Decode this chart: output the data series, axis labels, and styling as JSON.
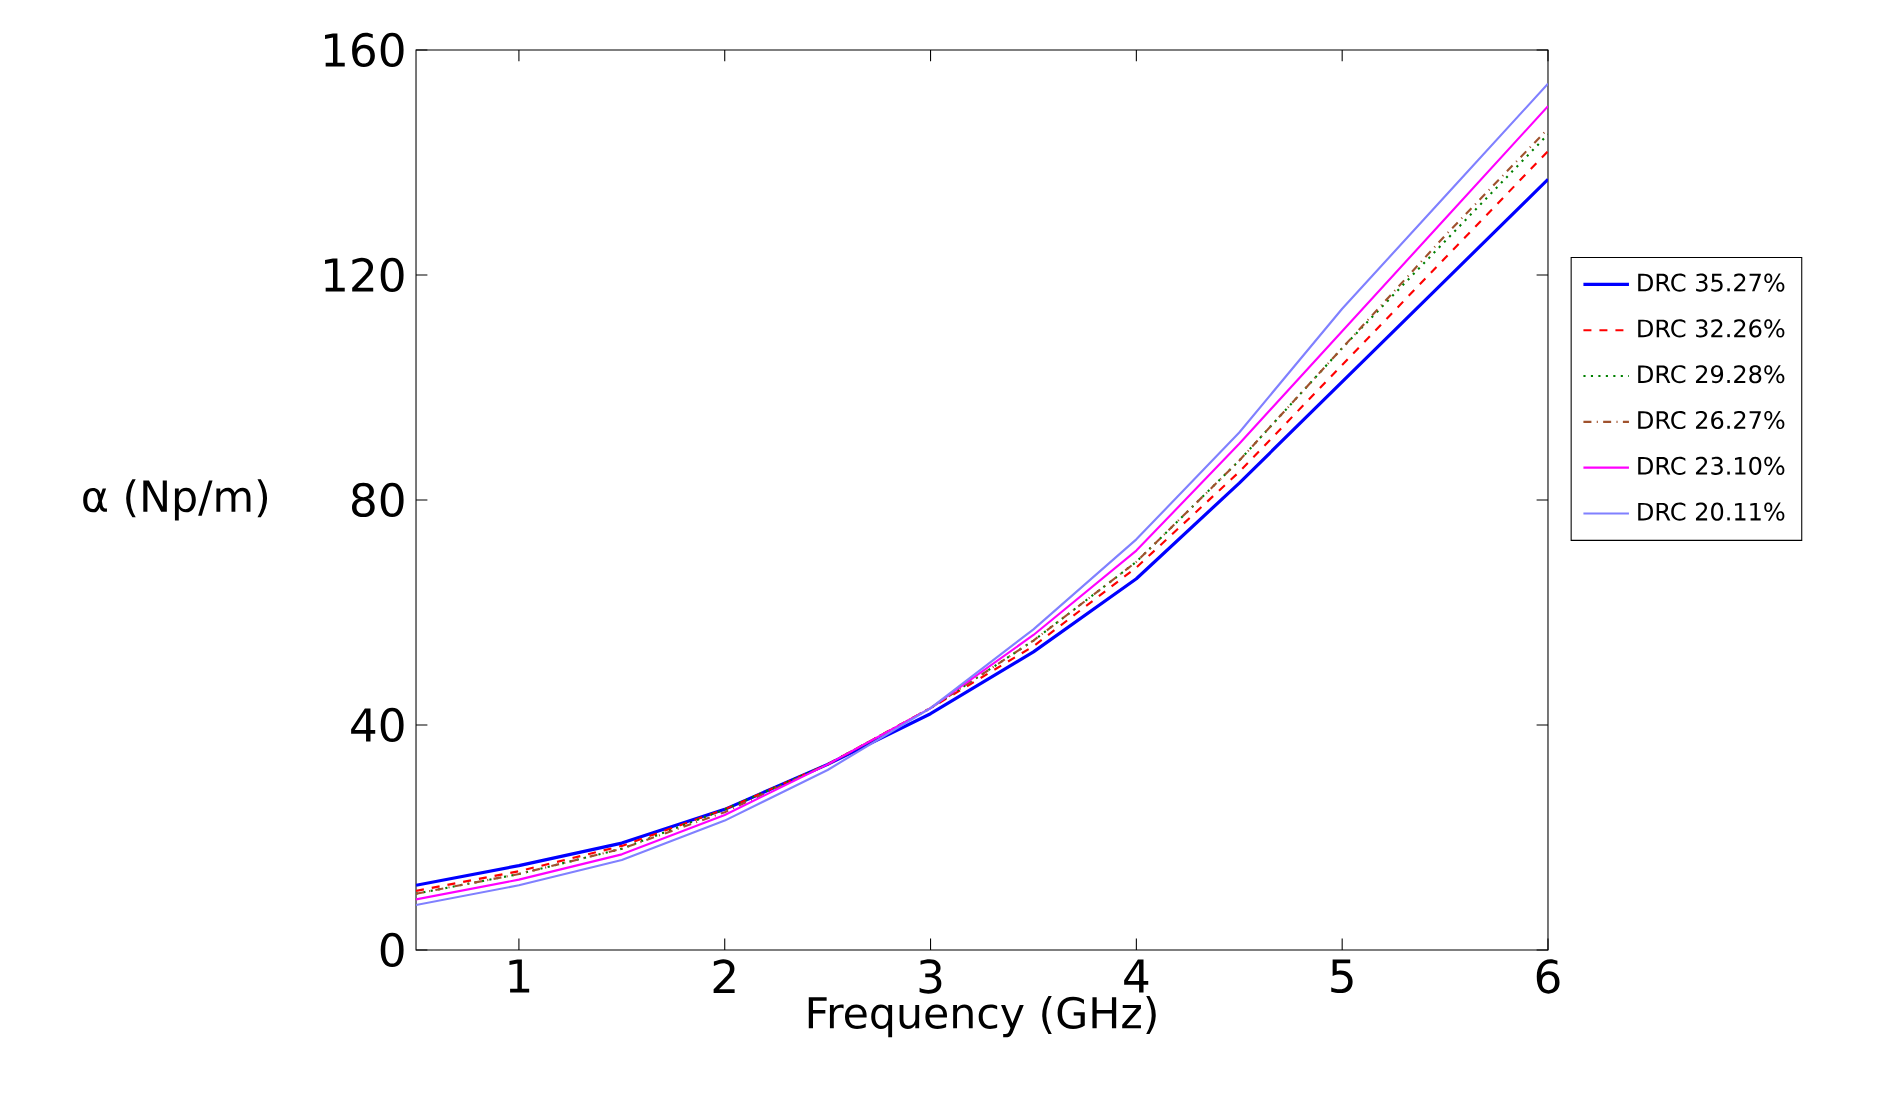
{
  "chart_data": {
    "type": "line",
    "xlabel": "Frequency (GHz)",
    "ylabel": "α (Np/m)",
    "xlim": [
      0.5,
      6
    ],
    "ylim": [
      0,
      160
    ],
    "xticks": [
      1,
      2,
      3,
      4,
      5,
      6
    ],
    "yticks": [
      0,
      40,
      80,
      120,
      160
    ],
    "legend": "right",
    "marker": "none",
    "x": [
      0.5,
      1,
      1.5,
      2,
      2.5,
      3,
      3.5,
      4,
      4.5,
      5,
      5.5,
      6
    ],
    "series": [
      {
        "name": "DRC 35.27%",
        "color": "#0000ff",
        "line_style": "solid",
        "values": [
          11.5,
          15,
          19,
          25,
          33,
          42,
          53,
          66,
          83,
          101,
          119,
          137
        ]
      },
      {
        "name": "DRC 32.26%",
        "color": "#ff0000",
        "line_style": "dashed",
        "values": [
          10.5,
          14,
          18.5,
          25,
          33,
          43,
          54,
          68,
          85,
          104,
          123,
          142
        ]
      },
      {
        "name": "DRC 29.28%",
        "color": "#008000",
        "line_style": "dotted",
        "values": [
          10,
          13.5,
          18,
          25,
          33,
          43,
          55,
          69,
          87,
          107,
          126,
          145
        ]
      },
      {
        "name": "DRC 26.27%",
        "color": "#a0522d",
        "line_style": "dashdot",
        "values": [
          10,
          13.5,
          18,
          24.5,
          33,
          43,
          55,
          69,
          87,
          107,
          127,
          146
        ]
      },
      {
        "name": "DRC 23.10%",
        "color": "#ff00ff",
        "line_style": "solid",
        "values": [
          9,
          12.5,
          17,
          24,
          33,
          43,
          56,
          71,
          90,
          110,
          130,
          150
        ]
      },
      {
        "name": "DRC 20.11%",
        "color": "#8080ff",
        "line_style": "solid",
        "values": [
          8,
          11.5,
          16,
          23,
          32,
          43,
          57,
          73,
          92,
          114,
          134,
          154
        ]
      }
    ]
  }
}
